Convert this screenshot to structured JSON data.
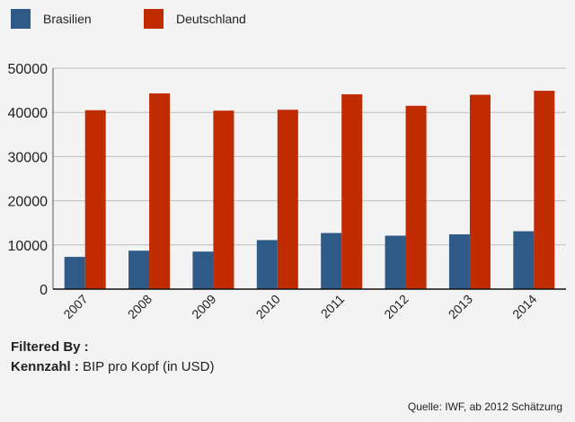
{
  "chart_data": {
    "type": "bar",
    "categories": [
      "2007",
      "2008",
      "2009",
      "2010",
      "2011",
      "2012",
      "2013",
      "2014"
    ],
    "series": [
      {
        "name": "Brasilien",
        "color": "#2e5a87",
        "values": [
          7300,
          8700,
          8500,
          11100,
          12700,
          12100,
          12400,
          13100
        ]
      },
      {
        "name": "Deutschland",
        "color": "#c12b00",
        "values": [
          40500,
          44300,
          40400,
          40600,
          44100,
          41500,
          44000,
          44900
        ]
      }
    ],
    "ylim": [
      0,
      50000
    ],
    "yticks": [
      "0",
      "10000",
      "20000",
      "30000",
      "40000",
      "50000"
    ],
    "grid": true,
    "legend": "top-left"
  },
  "filter": {
    "heading": "Filtered By :",
    "key": "Kennzahl :",
    "value": " BIP pro Kopf (in USD)"
  },
  "source": "Quelle: IWF, ab 2012 Schätzung"
}
